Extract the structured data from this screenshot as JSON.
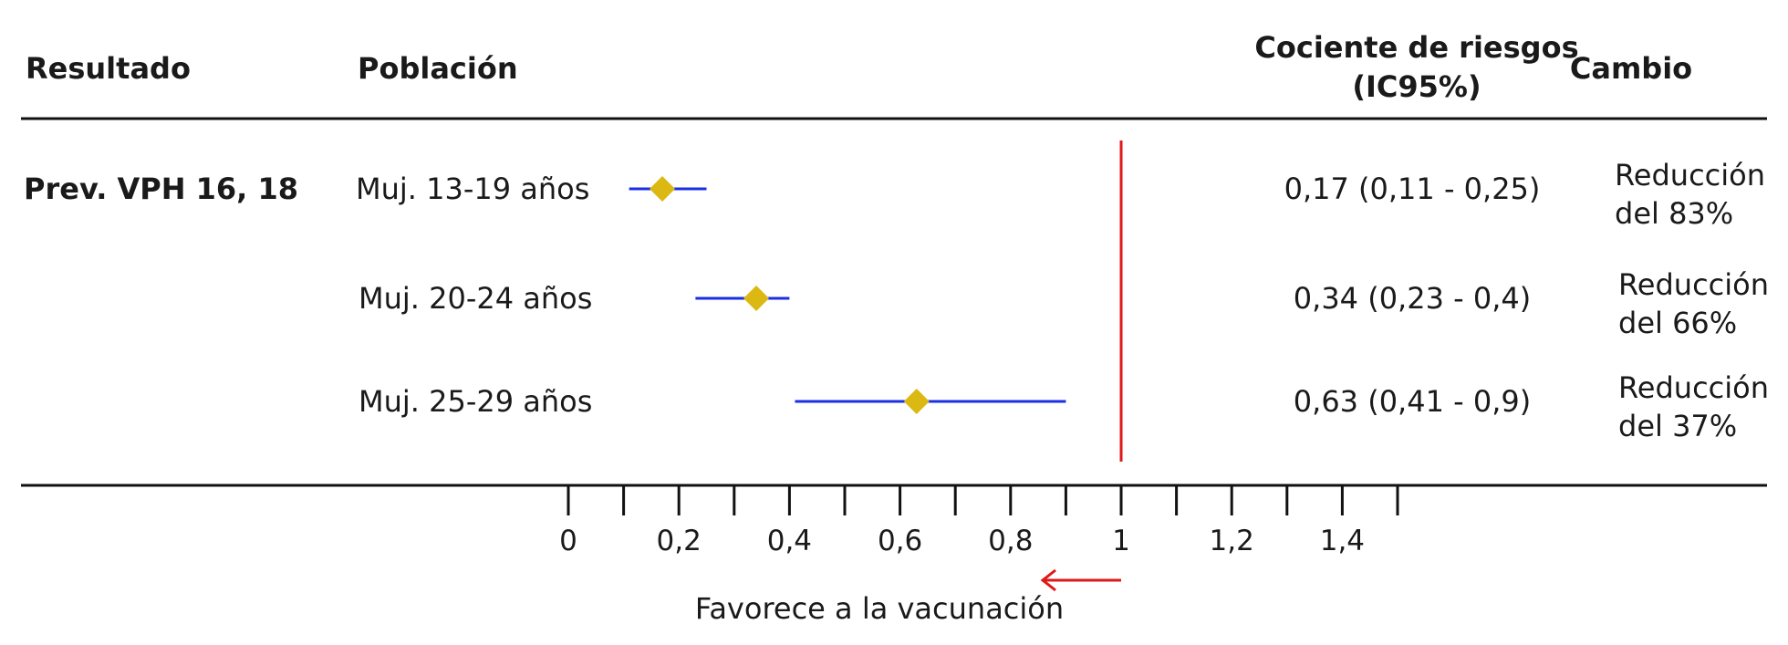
{
  "headers": {
    "resultado": "Resultado",
    "poblacion": "Población",
    "cociente_line1": "Cociente de riesgos",
    "cociente_line2": "(IC95%)",
    "cambio": "Cambio"
  },
  "outcome": "Prev. VPH 16, 18",
  "favors_label": "Favorece a la vacunación",
  "colors": {
    "ci_line": "#1a2ee6",
    "point": "#dbb812",
    "reference_line": "#e01818",
    "arrow": "#e01818",
    "axis": "#111111"
  },
  "chart_data": {
    "type": "forest",
    "reference_value": 1,
    "xlim": [
      0,
      1.5
    ],
    "tick_values": [
      0,
      0.1,
      0.2,
      0.3,
      0.4,
      0.5,
      0.6,
      0.7,
      0.8,
      0.9,
      1,
      1.1,
      1.2,
      1.3,
      1.4,
      1.5
    ],
    "tick_labels": [
      {
        "value": 0,
        "label": "0"
      },
      {
        "value": 0.2,
        "label": "0,2"
      },
      {
        "value": 0.4,
        "label": "0,4"
      },
      {
        "value": 0.6,
        "label": "0,6"
      },
      {
        "value": 0.8,
        "label": "0,8"
      },
      {
        "value": 1,
        "label": "1"
      },
      {
        "value": 1.2,
        "label": "1,2"
      },
      {
        "value": 1.4,
        "label": "1,4"
      }
    ],
    "rows": [
      {
        "population": "Muj. 13-19 años",
        "estimate": 0.17,
        "lower": 0.11,
        "upper": 0.25,
        "ci_text": "0,17 (0,11 - 0,25)",
        "change_line1": "Reducción",
        "change_line2": "del 83%"
      },
      {
        "population": "Muj. 20-24 años",
        "estimate": 0.34,
        "lower": 0.23,
        "upper": 0.4,
        "ci_text": "0,34 (0,23 - 0,4)",
        "change_line1": "Reducción",
        "change_line2": "del 66%"
      },
      {
        "population": "Muj. 25-29 años",
        "estimate": 0.63,
        "lower": 0.41,
        "upper": 0.9,
        "ci_text": "0,63 (0,41 - 0,9)",
        "change_line1": "Reducción",
        "change_line2": "del 37%"
      }
    ]
  }
}
